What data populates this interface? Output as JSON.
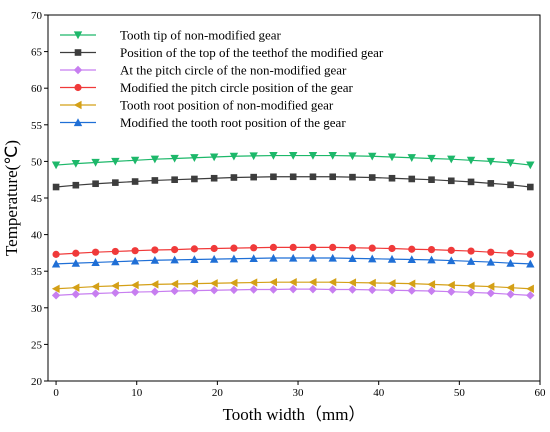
{
  "chart_data": {
    "type": "line",
    "title": "",
    "xlabel": "Tooth width（mm）",
    "ylabel": "Temperature(℃)",
    "xlim": [
      -1,
      60
    ],
    "ylim": [
      20,
      70
    ],
    "xticks": [
      0,
      10,
      20,
      30,
      40,
      50,
      60
    ],
    "yticks": [
      20,
      25,
      30,
      35,
      40,
      45,
      50,
      55,
      60,
      65,
      70
    ],
    "grid": false,
    "legend_position": "top-left",
    "x": [
      0,
      2.45,
      4.9,
      7.35,
      9.8,
      12.25,
      14.7,
      17.15,
      19.6,
      22.05,
      24.5,
      26.95,
      29.4,
      31.85,
      34.3,
      36.75,
      39.2,
      41.65,
      44.1,
      46.55,
      49,
      51.45,
      53.9,
      56.35,
      58.8
    ],
    "series": [
      {
        "name": "Tooth tip of non-modified gear",
        "marker": "triangle-down",
        "color": "#1db86a",
        "values": [
          49.5,
          49.7,
          49.85,
          50.0,
          50.15,
          50.3,
          50.4,
          50.5,
          50.6,
          50.7,
          50.75,
          50.8,
          50.8,
          50.8,
          50.8,
          50.75,
          50.7,
          50.6,
          50.5,
          50.4,
          50.3,
          50.15,
          50.0,
          49.8,
          49.5
        ]
      },
      {
        "name": "Position of the top of the teethof the modified gear",
        "marker": "square",
        "color": "#3d3d3d",
        "values": [
          46.5,
          46.75,
          46.95,
          47.1,
          47.25,
          47.4,
          47.5,
          47.6,
          47.7,
          47.8,
          47.85,
          47.9,
          47.9,
          47.9,
          47.9,
          47.85,
          47.8,
          47.7,
          47.6,
          47.5,
          47.35,
          47.2,
          47.0,
          46.8,
          46.5
        ]
      },
      {
        "name": "At the pitch circle of the non-modified gear",
        "marker": "diamond",
        "color": "#c77ef0",
        "values": [
          31.7,
          31.85,
          31.95,
          32.05,
          32.15,
          32.2,
          32.3,
          32.35,
          32.4,
          32.45,
          32.5,
          32.5,
          32.55,
          32.55,
          32.5,
          32.5,
          32.45,
          32.4,
          32.35,
          32.3,
          32.2,
          32.1,
          32.0,
          31.85,
          31.7
        ]
      },
      {
        "name": "Modified the pitch circle position of the gear",
        "marker": "circle",
        "color": "#f03a3a",
        "values": [
          37.3,
          37.45,
          37.6,
          37.7,
          37.8,
          37.9,
          37.95,
          38.05,
          38.1,
          38.15,
          38.2,
          38.25,
          38.25,
          38.25,
          38.25,
          38.2,
          38.15,
          38.1,
          38.0,
          37.95,
          37.85,
          37.75,
          37.6,
          37.45,
          37.3
        ]
      },
      {
        "name": "Tooth root position of non-modified gear",
        "marker": "triangle-left",
        "color": "#d4a017",
        "values": [
          32.6,
          32.75,
          32.9,
          33.0,
          33.1,
          33.2,
          33.25,
          33.3,
          33.35,
          33.4,
          33.45,
          33.5,
          33.5,
          33.5,
          33.5,
          33.45,
          33.4,
          33.35,
          33.3,
          33.2,
          33.1,
          33.0,
          32.9,
          32.75,
          32.6
        ]
      },
      {
        "name": "Modified the tooth root position of the gear",
        "marker": "triangle-up",
        "color": "#1f6fd6",
        "values": [
          36.0,
          36.1,
          36.2,
          36.3,
          36.4,
          36.5,
          36.55,
          36.6,
          36.65,
          36.7,
          36.75,
          36.8,
          36.8,
          36.8,
          36.8,
          36.75,
          36.7,
          36.65,
          36.6,
          36.55,
          36.45,
          36.35,
          36.25,
          36.1,
          36.0
        ]
      }
    ]
  }
}
